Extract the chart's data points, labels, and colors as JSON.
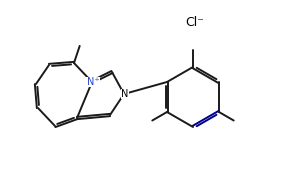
{
  "background_color": "#ffffff",
  "line_color": "#1a1a1a",
  "dark_blue_line": "#00008B",
  "text_color": "#000000",
  "cl_label": "Cl⁻",
  "n_plus_label": "N⁺",
  "n_label": "N",
  "figsize": [
    2.97,
    1.82
  ],
  "dpi": 100,
  "lw": 1.4
}
